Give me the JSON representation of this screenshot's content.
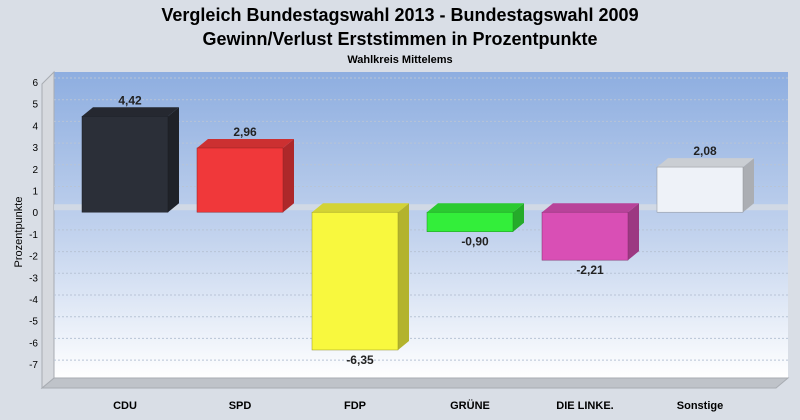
{
  "chart_data": {
    "type": "bar",
    "title": "Vergleich Bundestagswahl 2013 - Bundestagswahl 2009",
    "subtitle": "Gewinn/Verlust Erststimmen in Prozentpunkte",
    "caption": "Wahlkreis Mittelems",
    "xlabel": "",
    "ylabel": "Prozentpunkte",
    "ylim": [
      -8,
      6
    ],
    "yticks": [
      6,
      5,
      4,
      3,
      2,
      1,
      0,
      -1,
      -2,
      -3,
      -4,
      -5,
      -6,
      -7
    ],
    "grid": true,
    "legend": "none",
    "categories": [
      "CDU",
      "SPD",
      "FDP",
      "GRÜNE",
      "DIE LINKE.",
      "Sonstige"
    ],
    "values": [
      4.42,
      2.96,
      -6.35,
      -0.9,
      -2.21,
      2.08
    ],
    "value_labels": [
      "4,42",
      "2,96",
      "-6,35",
      "-0,90",
      "-2,21",
      "2,08"
    ],
    "colors": [
      "#2b2f38",
      "#f0383a",
      "#f8f83e",
      "#33ee3a",
      "#d94fb5",
      "#eef2f8"
    ]
  }
}
